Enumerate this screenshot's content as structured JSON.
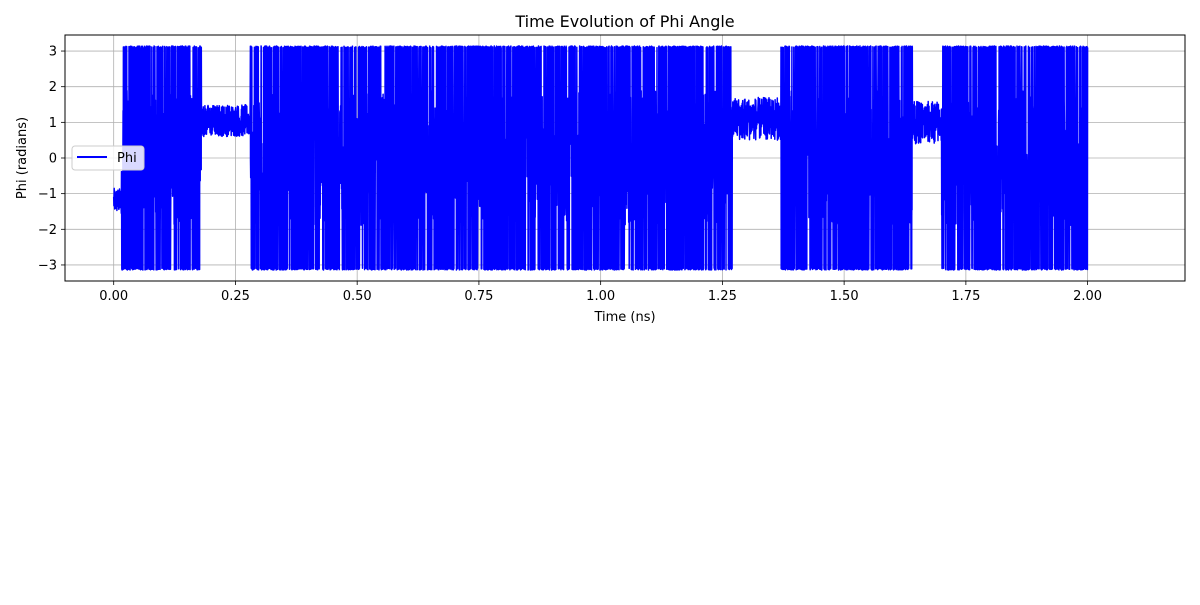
{
  "chart_data": {
    "type": "line",
    "title": "Time Evolution of Phi Angle",
    "xlabel": "Time (ns)",
    "ylabel": "Phi (radians)",
    "xlim": [
      -0.1,
      2.2
    ],
    "ylim": [
      -3.45,
      3.45
    ],
    "x_ticks": [
      0.0,
      0.25,
      0.5,
      0.75,
      1.0,
      1.25,
      1.5,
      1.75,
      2.0
    ],
    "x_tick_labels": [
      "0.00",
      "0.25",
      "0.50",
      "0.75",
      "1.00",
      "1.25",
      "1.50",
      "1.75",
      "2.00"
    ],
    "y_ticks": [
      -3,
      -2,
      -1,
      0,
      1,
      2,
      3
    ],
    "y_tick_labels": [
      "−3",
      "−2",
      "−1",
      "0",
      "1",
      "2",
      "3"
    ],
    "grid": true,
    "legend_position": "center-left",
    "series": [
      {
        "name": "Phi",
        "color": "#0000ff",
        "x_range": [
          0.0,
          2.0
        ],
        "segments": [
          {
            "t": [
              0.0,
              0.015
            ],
            "mode": "band",
            "center": -1.2,
            "spread": 0.35
          },
          {
            "t": [
              0.015,
              0.07
            ],
            "mode": "wrap"
          },
          {
            "t": [
              0.07,
              0.09
            ],
            "mode": "wrap"
          },
          {
            "t": [
              0.09,
              0.18
            ],
            "mode": "wrap"
          },
          {
            "t": [
              0.18,
              0.28
            ],
            "mode": "band",
            "center": 1.05,
            "spread": 0.45
          },
          {
            "t": [
              0.28,
              0.4
            ],
            "mode": "wrap"
          },
          {
            "t": [
              0.4,
              0.48
            ],
            "mode": "wrap"
          },
          {
            "t": [
              0.48,
              0.6
            ],
            "mode": "wrap"
          },
          {
            "t": [
              0.6,
              0.7
            ],
            "mode": "wrap"
          },
          {
            "t": [
              0.7,
              0.9
            ],
            "mode": "wrap"
          },
          {
            "t": [
              0.9,
              1.1
            ],
            "mode": "wrap"
          },
          {
            "t": [
              1.1,
              1.27
            ],
            "mode": "wrap"
          },
          {
            "t": [
              1.27,
              1.37
            ],
            "mode": "band",
            "center": 1.1,
            "spread": 0.6
          },
          {
            "t": [
              1.37,
              1.64
            ],
            "mode": "wrap"
          },
          {
            "t": [
              1.64,
              1.7
            ],
            "mode": "band",
            "center": 1.0,
            "spread": 0.6
          },
          {
            "t": [
              1.7,
              2.0
            ],
            "mode": "wrap"
          }
        ]
      }
    ]
  }
}
